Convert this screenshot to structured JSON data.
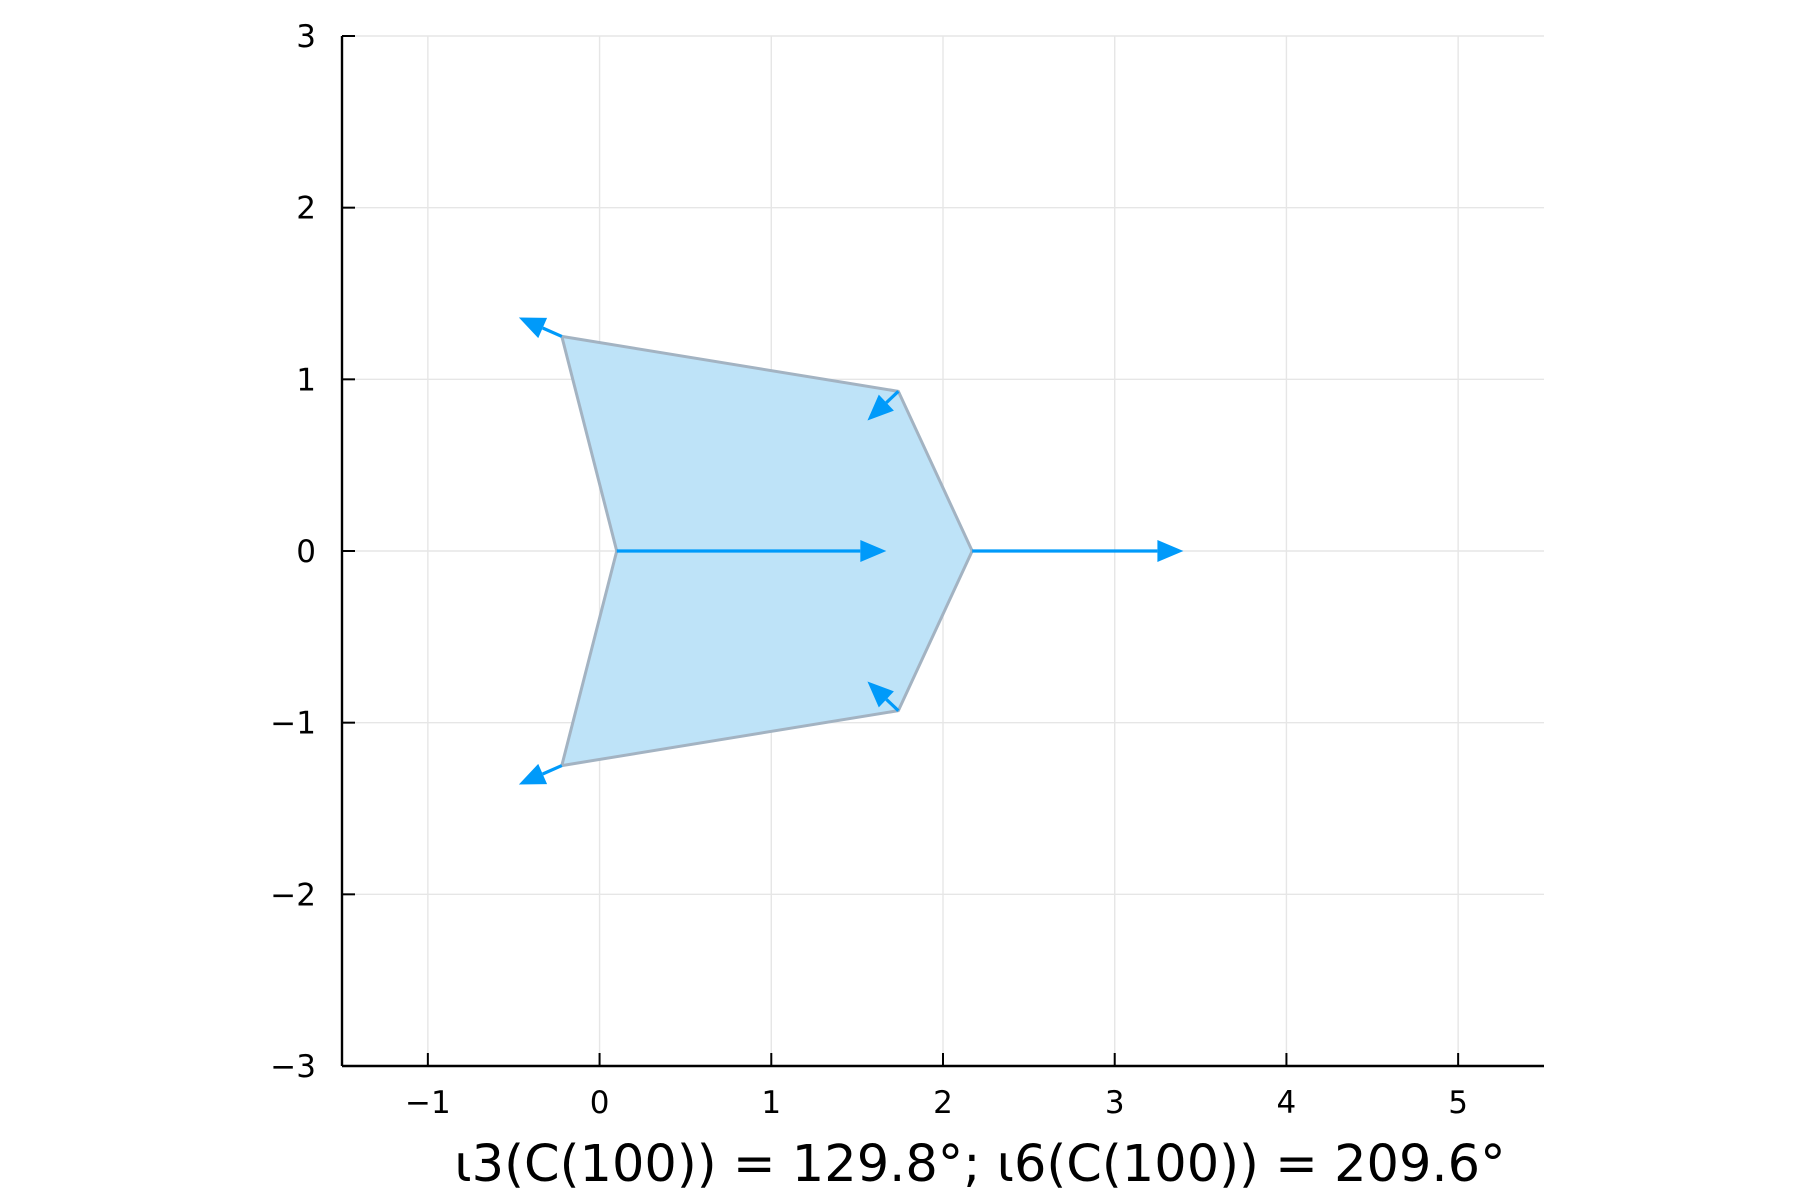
{
  "chart_data": {
    "type": "polygon-with-vectors",
    "title": "ι3(C(100)) = 129.8°; ι6(C(100)) = 209.6°",
    "xlabel": "",
    "ylabel": "",
    "xlim": [
      -1.5,
      5.5
    ],
    "ylim": [
      -3,
      3
    ],
    "xticks": [
      -1,
      0,
      1,
      2,
      3,
      4,
      5
    ],
    "xtick_labels": [
      "−1",
      "0",
      "1",
      "2",
      "3",
      "4",
      "5"
    ],
    "yticks": [
      -3,
      -2,
      -1,
      0,
      1,
      2,
      3
    ],
    "ytick_labels": [
      "−3",
      "−2",
      "−1",
      "0",
      "1",
      "2",
      "3"
    ],
    "grid": true,
    "polygon": {
      "vertices": [
        [
          0.1,
          0.0
        ],
        [
          -0.22,
          1.25
        ],
        [
          1.74,
          0.93
        ],
        [
          2.17,
          0.0
        ],
        [
          1.74,
          -0.93
        ],
        [
          -0.22,
          -1.25
        ]
      ],
      "fill_color": "#BEE3F8",
      "edge_color": "#A3B3C2"
    },
    "vectors": [
      {
        "from": [
          0.1,
          0.0
        ],
        "to": [
          1.67,
          0.0
        ]
      },
      {
        "from": [
          2.17,
          0.0
        ],
        "to": [
          3.4,
          0.0
        ]
      },
      {
        "from": [
          -0.22,
          1.25
        ],
        "to": [
          -0.47,
          1.36
        ]
      },
      {
        "from": [
          -0.22,
          -1.25
        ],
        "to": [
          -0.47,
          -1.36
        ]
      },
      {
        "from": [
          1.74,
          0.93
        ],
        "to": [
          1.56,
          0.76
        ]
      },
      {
        "from": [
          1.74,
          -0.93
        ],
        "to": [
          1.56,
          -0.76
        ]
      }
    ],
    "vector_color": "#009AFA"
  }
}
